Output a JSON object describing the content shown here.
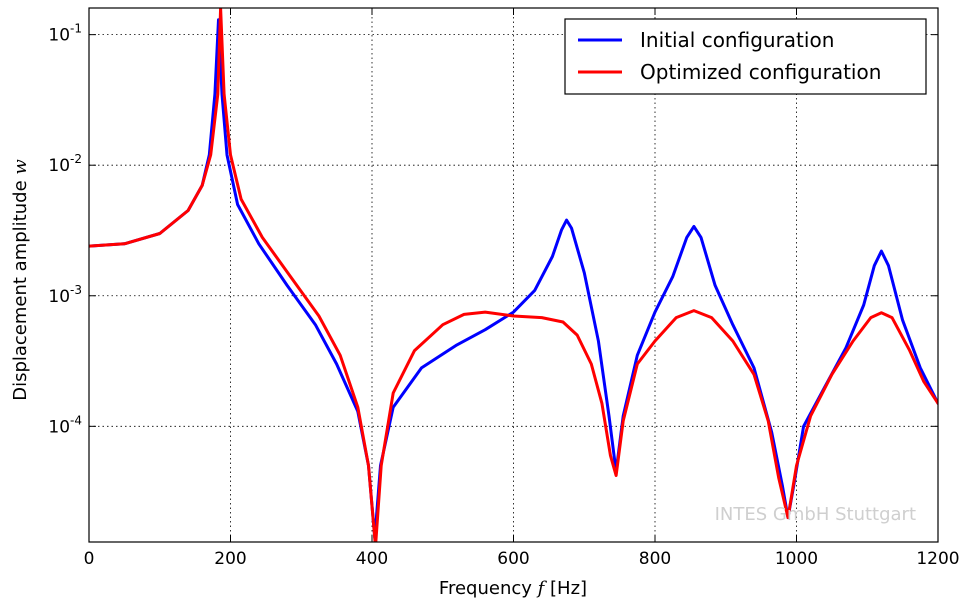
{
  "chart_data": {
    "type": "line",
    "xlabel_prefix": "Frequency ",
    "xlabel_var": "f",
    "xlabel_suffix": " [Hz]",
    "ylabel_prefix": "Displacement amplitude ",
    "ylabel_var": "w",
    "xlim": [
      0,
      1200
    ],
    "ylim": [
      1.3e-05,
      0.16
    ],
    "yscale": "log",
    "grid": true,
    "legend_position": "top-right",
    "x_ticks": [
      {
        "value": 0,
        "label": "0"
      },
      {
        "value": 200,
        "label": "200"
      },
      {
        "value": 400,
        "label": "400"
      },
      {
        "value": 600,
        "label": "600"
      },
      {
        "value": 800,
        "label": "800"
      },
      {
        "value": 1000,
        "label": "1000"
      },
      {
        "value": 1200,
        "label": "1200"
      }
    ],
    "y_ticks": [
      {
        "value": 0.1,
        "base": "10",
        "exp": "-1"
      },
      {
        "value": 0.01,
        "base": "10",
        "exp": "-2"
      },
      {
        "value": 0.001,
        "base": "10",
        "exp": "-3"
      },
      {
        "value": 0.0001,
        "base": "10",
        "exp": "-4"
      }
    ],
    "watermark": "INTES GmbH Stuttgart",
    "series": [
      {
        "name": "Initial configuration",
        "color": "#0000ff",
        "points": [
          [
            0,
            0.0024
          ],
          [
            50,
            0.0025
          ],
          [
            100,
            0.003
          ],
          [
            140,
            0.0045
          ],
          [
            160,
            0.007
          ],
          [
            170,
            0.012
          ],
          [
            178,
            0.035
          ],
          [
            183,
            0.13
          ],
          [
            188,
            0.035
          ],
          [
            195,
            0.012
          ],
          [
            210,
            0.005
          ],
          [
            240,
            0.0025
          ],
          [
            280,
            0.0012
          ],
          [
            320,
            0.0006
          ],
          [
            350,
            0.0003
          ],
          [
            380,
            0.00013
          ],
          [
            395,
            5e-05
          ],
          [
            404,
            1.4e-05
          ],
          [
            412,
            5e-05
          ],
          [
            430,
            0.00014
          ],
          [
            470,
            0.00028
          ],
          [
            520,
            0.00042
          ],
          [
            560,
            0.00055
          ],
          [
            600,
            0.00075
          ],
          [
            630,
            0.0011
          ],
          [
            655,
            0.002
          ],
          [
            668,
            0.0032
          ],
          [
            675,
            0.0038
          ],
          [
            682,
            0.0033
          ],
          [
            700,
            0.0015
          ],
          [
            720,
            0.00045
          ],
          [
            735,
            0.00012
          ],
          [
            745,
            4.5e-05
          ],
          [
            755,
            0.00012
          ],
          [
            775,
            0.00035
          ],
          [
            800,
            0.00075
          ],
          [
            825,
            0.0014
          ],
          [
            845,
            0.0028
          ],
          [
            855,
            0.0034
          ],
          [
            865,
            0.0028
          ],
          [
            885,
            0.0012
          ],
          [
            910,
            0.0006
          ],
          [
            940,
            0.00028
          ],
          [
            965,
            9e-05
          ],
          [
            980,
            3.5e-05
          ],
          [
            988,
            2e-05
          ],
          [
            996,
            3.5e-05
          ],
          [
            1010,
            0.0001
          ],
          [
            1040,
            0.0002
          ],
          [
            1070,
            0.0004
          ],
          [
            1095,
            0.00085
          ],
          [
            1110,
            0.0017
          ],
          [
            1120,
            0.0022
          ],
          [
            1130,
            0.0017
          ],
          [
            1150,
            0.00065
          ],
          [
            1175,
            0.00028
          ],
          [
            1200,
            0.00015
          ]
        ]
      },
      {
        "name": "Optimized configuration",
        "color": "#ff0000",
        "points": [
          [
            0,
            0.0024
          ],
          [
            50,
            0.0025
          ],
          [
            100,
            0.003
          ],
          [
            140,
            0.0045
          ],
          [
            160,
            0.007
          ],
          [
            172,
            0.012
          ],
          [
            182,
            0.035
          ],
          [
            186,
            0.16
          ],
          [
            191,
            0.035
          ],
          [
            200,
            0.012
          ],
          [
            215,
            0.0055
          ],
          [
            245,
            0.0028
          ],
          [
            285,
            0.0014
          ],
          [
            325,
            0.0007
          ],
          [
            355,
            0.00035
          ],
          [
            380,
            0.00014
          ],
          [
            395,
            5e-05
          ],
          [
            405,
            1.2e-05
          ],
          [
            413,
            5e-05
          ],
          [
            430,
            0.00018
          ],
          [
            460,
            0.00038
          ],
          [
            500,
            0.0006
          ],
          [
            530,
            0.00072
          ],
          [
            560,
            0.00075
          ],
          [
            600,
            0.0007
          ],
          [
            640,
            0.00068
          ],
          [
            670,
            0.00063
          ],
          [
            690,
            0.0005
          ],
          [
            710,
            0.0003
          ],
          [
            725,
            0.00015
          ],
          [
            737,
            6e-05
          ],
          [
            745,
            4.2e-05
          ],
          [
            755,
            0.00011
          ],
          [
            775,
            0.0003
          ],
          [
            800,
            0.00045
          ],
          [
            830,
            0.00068
          ],
          [
            855,
            0.00077
          ],
          [
            880,
            0.00068
          ],
          [
            910,
            0.00045
          ],
          [
            940,
            0.00025
          ],
          [
            960,
            0.00011
          ],
          [
            975,
            4e-05
          ],
          [
            988,
            2e-05
          ],
          [
            1000,
            5e-05
          ],
          [
            1020,
            0.00012
          ],
          [
            1050,
            0.00025
          ],
          [
            1080,
            0.00045
          ],
          [
            1105,
            0.00068
          ],
          [
            1120,
            0.00074
          ],
          [
            1135,
            0.00068
          ],
          [
            1160,
            0.00038
          ],
          [
            1180,
            0.00022
          ],
          [
            1200,
            0.00015
          ]
        ]
      }
    ]
  }
}
